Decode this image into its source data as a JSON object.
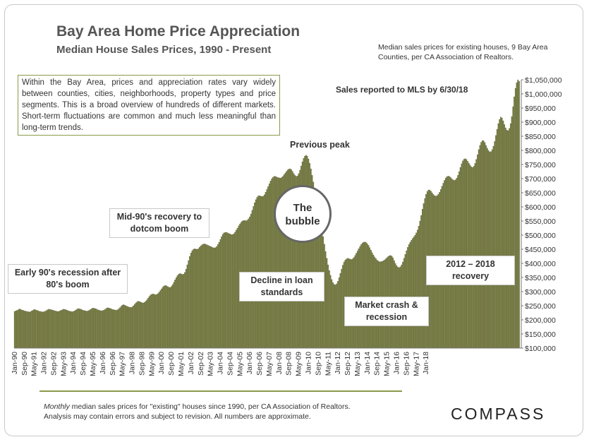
{
  "header": {
    "title": "Bay Area Home Price Appreciation",
    "subtitle": "Median House Sales Prices, 1990 - Present",
    "source": "Median sales prices for existing houses, 9 Bay Area Counties, per CA Association of Realtors."
  },
  "intro": "Within the Bay Area, prices and appreciation rates vary widely between counties, cities, neighborhoods, property types and price segments. This is a broad overview of hundreds of different markets. Short-term fluctuations are common and much less meaningful than long-term trends.",
  "annotations": {
    "mls": "Sales reported to MLS by 6/30/18",
    "previous_peak": "Previous peak",
    "bubble": "The bubble",
    "early90s": "Early 90's recession after 80's boom",
    "mid90s": "Mid-90's recovery to dotcom boom",
    "decline": "Decline in loan standards",
    "crash": "Market crash & recession",
    "recovery": "2012 – 2018 recovery"
  },
  "footer": {
    "note_em": "Monthly",
    "note_rest": " median sales prices for \"existing\" houses since 1990, per CA Association of Realtors.",
    "note_line2": "Analysis may contain errors and subject to revision. All numbers are approximate.",
    "logo": "COMPASS"
  },
  "colors": {
    "bar": "#757a3c",
    "bar_edge": "#4f5326",
    "accent": "#8a9a4a",
    "text": "#333333"
  },
  "chart_data": {
    "type": "bar",
    "title": "Bay Area Home Price Appreciation",
    "ylim": [
      100000,
      1050000
    ],
    "y_ticks": [
      "$100,000",
      "$150,000",
      "$200,000",
      "$250,000",
      "$300,000",
      "$350,000",
      "$400,000",
      "$450,000",
      "$500,000",
      "$550,000",
      "$600,000",
      "$650,000",
      "$700,000",
      "$750,000",
      "$800,000",
      "$850,000",
      "$900,000",
      "$950,000",
      "$1,000,000",
      "$1,050,000"
    ],
    "x_tick_labels": [
      "Jan-90",
      "Sep-90",
      "May-91",
      "Jan-92",
      "Sep-92",
      "May-93",
      "Jan-94",
      "Sep-94",
      "May-95",
      "Jan-96",
      "Sep-96",
      "May-97",
      "Jan-98",
      "Sep-98",
      "May-99",
      "Jan-00",
      "Sep-00",
      "May-01",
      "Jan-02",
      "Sep-02",
      "May-03",
      "Jan-04",
      "Sep-04",
      "May-05",
      "Jan-06",
      "Sep-06",
      "May-07",
      "Jan-08",
      "Sep-08",
      "May-09",
      "Jan-10",
      "Sep-10",
      "May-11",
      "Jan-12",
      "Sep-12",
      "May-13",
      "Jan-14",
      "Sep-14",
      "May-15",
      "Jan-16",
      "Sep-16",
      "May-17",
      "Jan-18"
    ],
    "series": [
      {
        "start": "1990-01",
        "values": [
          230000,
          232000,
          234000,
          236000,
          239000,
          237000,
          235000,
          234000,
          232000,
          231000,
          230000,
          229000,
          228000,
          229000,
          232000,
          234000,
          237000,
          236000,
          234000,
          233000,
          231000,
          230000,
          229000,
          228000,
          229000,
          231000,
          233000,
          236000,
          238000,
          237000,
          236000,
          235000,
          233000,
          232000,
          231000,
          230000,
          230000,
          232000,
          234000,
          236000,
          238000,
          237000,
          236000,
          234000,
          232000,
          231000,
          230000,
          229000,
          230000,
          232000,
          235000,
          238000,
          240000,
          239000,
          238000,
          236000,
          234000,
          233000,
          232000,
          231000,
          232000,
          234000,
          237000,
          240000,
          242000,
          241000,
          240000,
          238000,
          236000,
          234000,
          233000,
          232000,
          233000,
          235000,
          238000,
          241000,
          243000,
          242000,
          241000,
          239000,
          237000,
          236000,
          235000,
          234000,
          236000,
          239000,
          243000,
          248000,
          252000,
          254000,
          252000,
          250000,
          248000,
          246000,
          245000,
          244000,
          246000,
          250000,
          255000,
          260000,
          264000,
          266000,
          265000,
          263000,
          261000,
          260000,
          262000,
          266000,
          271000,
          277000,
          283000,
          288000,
          291000,
          292000,
          291000,
          289000,
          290000,
          293000,
          298000,
          304000,
          310000,
          316000,
          320000,
          322000,
          321000,
          318000,
          316000,
          315000,
          318000,
          325000,
          333000,
          342000,
          350000,
          357000,
          362000,
          364000,
          363000,
          361000,
          362000,
          368000,
          380000,
          395000,
          410000,
          425000,
          437000,
          445000,
          450000,
          452000,
          451000,
          450000,
          452000,
          457000,
          462000,
          466000,
          468000,
          469000,
          468000,
          466000,
          464000,
          462000,
          460000,
          458000,
          456000,
          455000,
          456000,
          460000,
          467000,
          475000,
          485000,
          495000,
          503000,
          508000,
          510000,
          510000,
          508000,
          506000,
          504000,
          502000,
          502000,
          505000,
          511000,
          518000,
          525000,
          533000,
          540000,
          546000,
          550000,
          552000,
          552000,
          551000,
          553000,
          558000,
          565000,
          575000,
          588000,
          602000,
          615000,
          626000,
          634000,
          639000,
          640000,
          638000,
          637000,
          638000,
          643000,
          652000,
          662000,
          672000,
          682000,
          692000,
          700000,
          705000,
          708000,
          708000,
          706000,
          704000,
          703000,
          702000,
          704000,
          708000,
          714000,
          720000,
          726000,
          731000,
          734000,
          735000,
          732000,
          726000,
          718000,
          712000,
          708000,
          710000,
          718000,
          730000,
          745000,
          760000,
          772000,
          780000,
          783000,
          780000,
          770000,
          755000,
          735000,
          712000,
          688000,
          664000,
          640000,
          617000,
          595000,
          572000,
          548000,
          522000,
          495000,
          468000,
          442000,
          418000,
          395000,
          375000,
          358000,
          343000,
          332000,
          326000,
          324000,
          328000,
          337000,
          350000,
          365000,
          380000,
          394000,
          405000,
          412000,
          416000,
          418000,
          417000,
          415000,
          414000,
          416000,
          421000,
          428000,
          436000,
          444000,
          452000,
          460000,
          467000,
          472000,
          475000,
          476000,
          474000,
          470000,
          464000,
          456000,
          447000,
          438000,
          430000,
          423000,
          417000,
          412000,
          408000,
          406000,
          406000,
          407000,
          409000,
          412000,
          416000,
          420000,
          424000,
          427000,
          428000,
          426000,
          420000,
          410000,
          400000,
          392000,
          387000,
          385000,
          388000,
          395000,
          405000,
          418000,
          432000,
          445000,
          457000,
          467000,
          475000,
          482000,
          488000,
          494000,
          500000,
          508000,
          518000,
          532000,
          550000,
          570000,
          592000,
          612000,
          630000,
          645000,
          655000,
          660000,
          660000,
          656000,
          650000,
          644000,
          640000,
          638000,
          640000,
          645000,
          652000,
          662000,
          673000,
          684000,
          694000,
          702000,
          707000,
          709000,
          708000,
          705000,
          700000,
          696000,
          694000,
          696000,
          702000,
          712000,
          725000,
          740000,
          753000,
          763000,
          769000,
          771000,
          768000,
          762000,
          755000,
          748000,
          742000,
          740000,
          744000,
          754000,
          768000,
          785000,
          803000,
          818000,
          829000,
          835000,
          834000,
          828000,
          818000,
          808000,
          800000,
          795000,
          796000,
          803000,
          815000,
          832000,
          853000,
          875000,
          895000,
          910000,
          918000,
          915000,
          905000,
          892000,
          880000,
          872000,
          870000,
          878000,
          895000,
          920000,
          955000,
          990000,
          1020000,
          1040000,
          1050000,
          1045000
        ]
      }
    ]
  }
}
